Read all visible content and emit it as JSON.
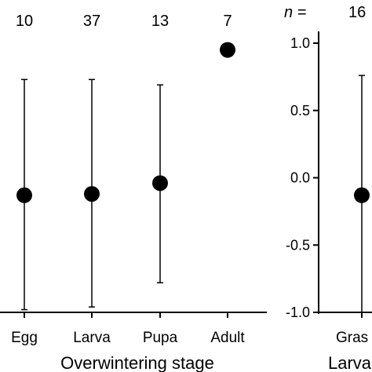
{
  "chart_data": [
    {
      "type": "scatter",
      "style": "point-with-error-bars",
      "xlabel": "Overwintering stage",
      "categories": [
        "Egg",
        "Larva",
        "Pupa",
        "Adult"
      ],
      "n_values": [
        "10",
        "37",
        "13",
        "7"
      ],
      "points": [
        {
          "category": "Egg",
          "y": -0.13,
          "lower": -0.98,
          "upper": 0.73
        },
        {
          "category": "Larva",
          "y": -0.12,
          "lower": -0.96,
          "upper": 0.73
        },
        {
          "category": "Pupa",
          "y": -0.04,
          "lower": -0.78,
          "upper": 0.69
        },
        {
          "category": "Adult",
          "y": 0.95,
          "lower": null,
          "upper": null
        }
      ],
      "ylim": [
        -1.0,
        1.0
      ],
      "y_axis_visible": false
    },
    {
      "type": "scatter",
      "style": "point-with-error-bars",
      "n_label": "n =",
      "n_values": [
        "16"
      ],
      "categories": [
        "Gras"
      ],
      "xlabel": "Larva",
      "yticks": [
        "1.0",
        "0.5",
        "0.0",
        "-0.5",
        "-1.0"
      ],
      "ytick_values": [
        1.0,
        0.5,
        0.0,
        -0.5,
        -1.0
      ],
      "points": [
        {
          "category": "Gras",
          "y": -0.13,
          "lower": null,
          "upper": 0.76
        }
      ],
      "ylim": [
        -1.0,
        1.0
      ]
    }
  ]
}
